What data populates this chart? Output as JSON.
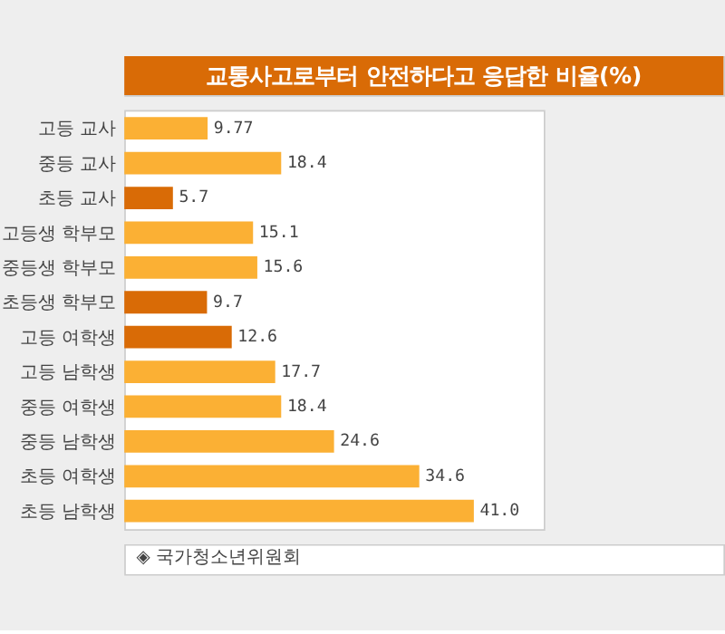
{
  "chart_data": {
    "type": "bar",
    "orientation": "horizontal",
    "title": "교통사고로부터 안전하다고 응답한 비율(%)",
    "categories": [
      "고등 교사",
      "중등 교사",
      "초등 교사",
      "고등생 학부모",
      "중등생 학부모",
      "초등생 학부모",
      "고등 여학생",
      "고등 남학생",
      "중등 여학생",
      "중등 남학생",
      "초등 여학생",
      "초등 남학생"
    ],
    "values": [
      9.77,
      18.4,
      5.7,
      15.1,
      15.6,
      9.7,
      12.6,
      17.7,
      18.4,
      24.6,
      34.6,
      41.0
    ],
    "value_labels": [
      "9.77",
      "18.4",
      "5.7",
      "15.1",
      "15.6",
      "9.7",
      "12.6",
      "17.7",
      "18.4",
      "24.6",
      "34.6",
      "41.0"
    ],
    "colors": [
      "#fbb034",
      "#fbb034",
      "#d96b06",
      "#fbb034",
      "#fbb034",
      "#d96b06",
      "#d96b06",
      "#fbb034",
      "#fbb034",
      "#fbb034",
      "#fbb034",
      "#fbb034"
    ],
    "annotations": [
      "◈ 국가청소년위원회"
    ]
  }
}
